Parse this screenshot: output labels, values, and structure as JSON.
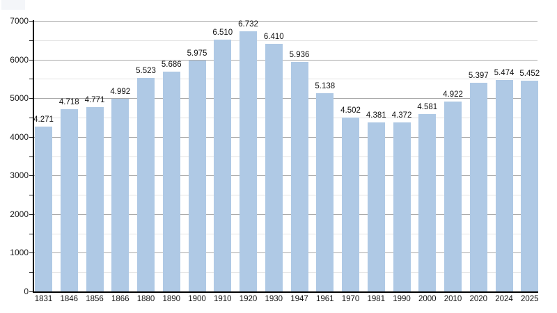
{
  "chart_data": {
    "type": "bar",
    "title": "",
    "xlabel": "",
    "ylabel": "",
    "legend": "none",
    "grid": "horizontal, major and minor lines",
    "categories": [
      "1831",
      "1846",
      "1856",
      "1866",
      "1880",
      "1890",
      "1900",
      "1910",
      "1920",
      "1930",
      "1947",
      "1961",
      "1970",
      "1981",
      "1990",
      "2000",
      "2010",
      "2020",
      "2024",
      "2025"
    ],
    "values": [
      4271,
      4718,
      4771,
      4992,
      5523,
      5686,
      5975,
      6510,
      6732,
      6410,
      5936,
      5138,
      4502,
      4381,
      4372,
      4581,
      4922,
      5397,
      5474,
      5452
    ],
    "value_labels": [
      "4.271",
      "4.718",
      "4.771",
      "4.992",
      "5.523",
      "5.686",
      "5.975",
      "6.510",
      "6.732",
      "6.410",
      "5.936",
      "5.138",
      "4.502",
      "4.381",
      "4.372",
      "4.581",
      "4.922",
      "5.397",
      "5.474",
      "5.452"
    ],
    "ylim": [
      0,
      7000
    ],
    "y_major_ticks": [
      0,
      1000,
      2000,
      3000,
      4000,
      5000,
      6000,
      7000
    ],
    "y_tick_labels": [
      "0",
      "1000",
      "2000",
      "3000",
      "4000",
      "5000",
      "6000",
      "7000"
    ],
    "y_minor_tick_step": 500,
    "colors": {
      "bar": "#afc9e5",
      "grid_major": "#a8a8a8",
      "grid_minor": "#e3e3e3",
      "axis": "#000000",
      "text": "#111111"
    }
  }
}
